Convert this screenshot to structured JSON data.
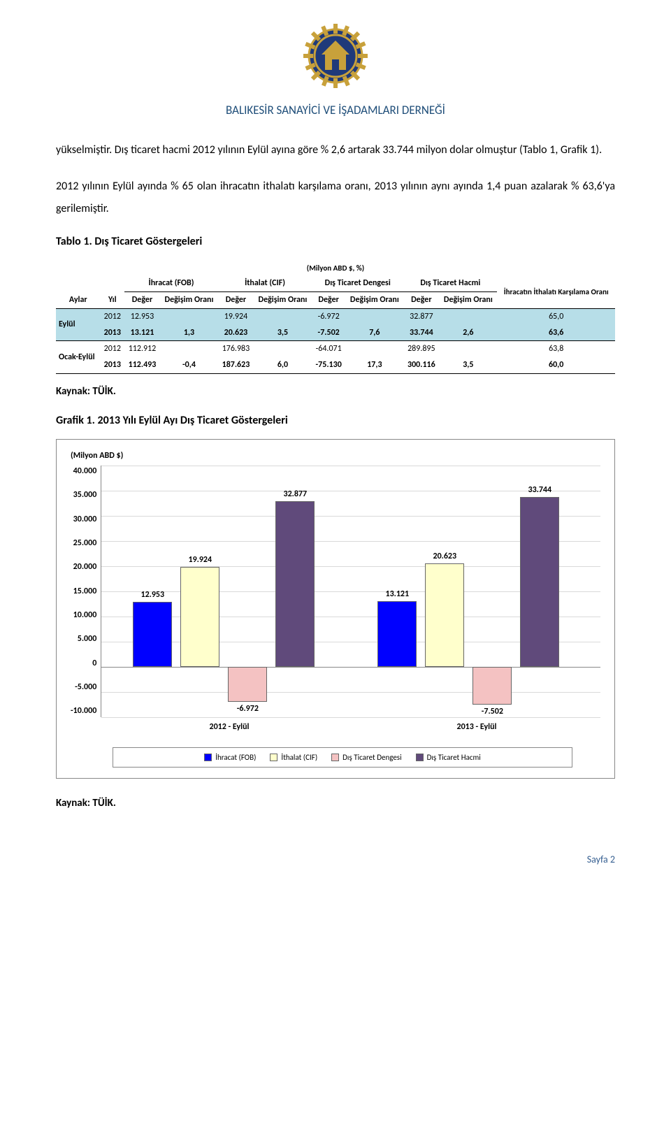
{
  "header": {
    "org_title": "BALIKESİR SANAYİCİ VE İŞADAMLARI DERNEĞİ"
  },
  "paragraphs": {
    "p1": "yükselmiştir. Dış ticaret hacmi 2012 yılının Eylül ayına göre % 2,6 artarak 33.744 milyon dolar olmuştur (Tablo 1, Grafik 1).",
    "p2": "2012 yılının Eylül ayında % 65 olan ihracatın ithalatı karşılama oranı, 2013 yılının aynı ayında 1,4 puan azalarak % 63,6'ya gerilemiştir."
  },
  "table1": {
    "title": "Tablo 1. Dış Ticaret Göstergeleri",
    "unit": "(Milyon ABD $, %)",
    "col_aylar": "Aylar",
    "col_yil": "Yıl",
    "group_ihracat": "İhracat (FOB)",
    "group_ithalat": "İthalat (CIF)",
    "group_denge": "Dış Ticaret Dengesi",
    "group_hacmi": "Dış Ticaret Hacmi",
    "group_karsilama": "İhracatın İthalatı Karşılama Oranı",
    "sub_deger": "Değer",
    "sub_degisim": "Değişim Oranı",
    "rows": {
      "eylul_label": "Eylül",
      "ocak_eylul_label": "Ocak-Eylül",
      "r1": {
        "yil": "2012",
        "v1": "12.953",
        "v2": "",
        "v3": "19.924",
        "v4": "",
        "v5": "-6.972",
        "v6": "",
        "v7": "32.877",
        "v8": "",
        "v9": "65,0"
      },
      "r2": {
        "yil": "2013",
        "v1": "13.121",
        "v2": "1,3",
        "v3": "20.623",
        "v4": "3,5",
        "v5": "-7.502",
        "v6": "7,6",
        "v7": "33.744",
        "v8": "2,6",
        "v9": "63,6"
      },
      "r3": {
        "yil": "2012",
        "v1": "112.912",
        "v2": "",
        "v3": "176.983",
        "v4": "",
        "v5": "-64.071",
        "v6": "",
        "v7": "289.895",
        "v8": "",
        "v9": "63,8"
      },
      "r4": {
        "yil": "2013",
        "v1": "112.493",
        "v2": "-0,4",
        "v3": "187.623",
        "v4": "6,0",
        "v5": "-75.130",
        "v6": "17,3",
        "v7": "300.116",
        "v8": "3,5",
        "v9": "60,0"
      }
    },
    "source": "Kaynak: TÜİK."
  },
  "chart1": {
    "title": "Grafik 1. 2013 Yılı Eylül Ayı Dış Ticaret Göstergeleri",
    "axis_title": "(Milyon ABD $)",
    "ymin": -10000,
    "ymax": 40000,
    "ystep": 5000,
    "yticks": [
      "40.000",
      "35.000",
      "30.000",
      "25.000",
      "20.000",
      "15.000",
      "10.000",
      "5.000",
      "0",
      "-5.000",
      "-10.000"
    ],
    "colors": {
      "ihracat": "#0000ff",
      "ithalat": "#ffffcc",
      "denge": "#f4c2c2",
      "hacmi": "#604a7b",
      "grid": "#d9d9d9",
      "border": "#888888"
    },
    "groups": [
      {
        "label": "2012 - Eylül",
        "bars": [
          {
            "series": "ihracat",
            "value": 12953,
            "label": "12.953"
          },
          {
            "series": "ithalat",
            "value": 19924,
            "label": "19.924"
          },
          {
            "series": "denge",
            "value": -6972,
            "label": "-6.972"
          },
          {
            "series": "hacmi",
            "value": 32877,
            "label": "32.877"
          }
        ]
      },
      {
        "label": "2013 - Eylül",
        "bars": [
          {
            "series": "ihracat",
            "value": 13121,
            "label": "13.121"
          },
          {
            "series": "ithalat",
            "value": 20623,
            "label": "20.623"
          },
          {
            "series": "denge",
            "value": -7502,
            "label": "-7.502"
          },
          {
            "series": "hacmi",
            "value": 33744,
            "label": "33.744"
          }
        ]
      }
    ],
    "legend": [
      {
        "key": "ihracat",
        "label": "İhracat (FOB)"
      },
      {
        "key": "ithalat",
        "label": "İthalat (CIF)"
      },
      {
        "key": "denge",
        "label": "Dış Ticaret Dengesi"
      },
      {
        "key": "hacmi",
        "label": "Dış Ticaret Hacmi"
      }
    ],
    "source": "Kaynak: TÜİK."
  },
  "footer": {
    "page": "Sayfa 2"
  }
}
